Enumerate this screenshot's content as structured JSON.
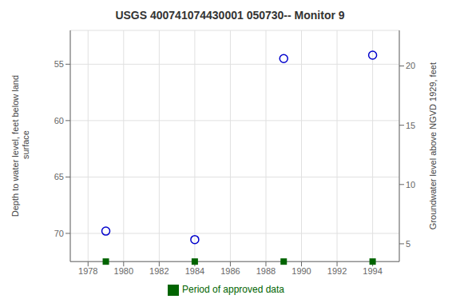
{
  "chart_data": {
    "type": "scatter",
    "title": "USGS 400741074430001 050730-- Monitor 9",
    "ylabel": "Depth to water level, feet below land\n surface",
    "y2label": "Groundwater level above NGVD 1929, feet",
    "x": [
      1979,
      1984,
      1989,
      1994
    ],
    "series": [
      {
        "values": [
          69.8,
          70.55,
          54.5,
          54.2
        ],
        "color": "#0000cc",
        "marker": "circle"
      },
      {
        "name": "Period of approved data",
        "values": [
          72.5,
          72.5,
          72.5,
          72.5
        ],
        "color": "#006400",
        "marker": "square"
      }
    ],
    "xlim": [
      1977.0,
      1995.5
    ],
    "xticks": [
      1978,
      1980,
      1982,
      1984,
      1986,
      1988,
      1990,
      1992,
      1994
    ],
    "ylim": [
      72.5,
      52.0
    ],
    "yticks": [
      55,
      60,
      65,
      70
    ],
    "y2lim": [
      3.5,
      23.0
    ],
    "y2ticks": [
      5,
      10,
      15,
      20
    ],
    "grid": true,
    "legend": "bottom"
  }
}
